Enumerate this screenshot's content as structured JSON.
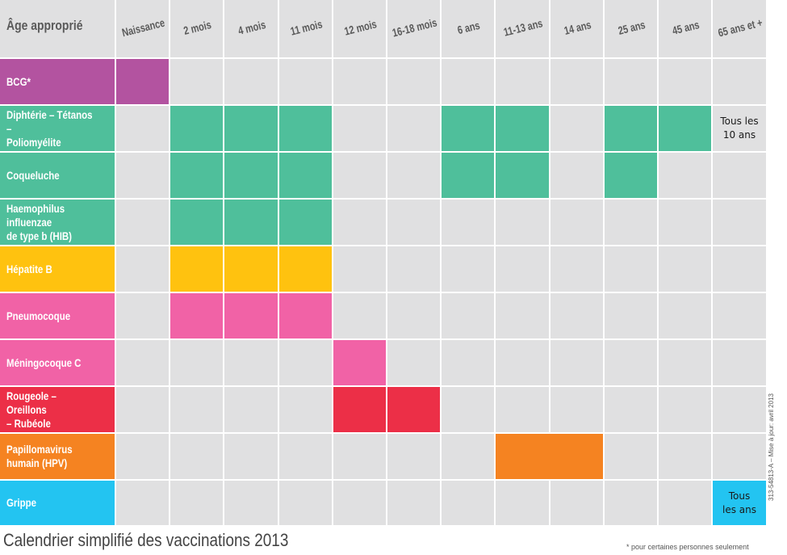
{
  "chart_data": {
    "type": "table",
    "title": "Calendrier simplifié des vaccinations 2013",
    "corner_label": "Âge approprié",
    "columns": [
      "Naissance",
      "2 mois",
      "4 mois",
      "11 mois",
      "12 mois",
      "16-18 mois",
      "6 ans",
      "11-13 ans",
      "14 ans",
      "25 ans",
      "45 ans",
      "65 ans et +"
    ],
    "rows": [
      {
        "name": "BCG*",
        "color": "#b353a0",
        "doses": [
          1,
          0,
          0,
          0,
          0,
          0,
          0,
          0,
          0,
          0,
          0,
          0
        ]
      },
      {
        "name": "Diphtérie – Tétanos –\nPoliomyélite",
        "color": "#4fbf9b",
        "doses": [
          0,
          1,
          1,
          1,
          0,
          0,
          1,
          1,
          0,
          1,
          1,
          0
        ],
        "note_col": 11,
        "note": "Tous les\n10 ans"
      },
      {
        "name": "Coqueluche",
        "color": "#4fbf9b",
        "doses": [
          0,
          1,
          1,
          1,
          0,
          0,
          1,
          1,
          0,
          1,
          0,
          0
        ]
      },
      {
        "name": "Haemophilus influenzae\nde type b (HIB)",
        "color": "#4fbf9b",
        "doses": [
          0,
          1,
          1,
          1,
          0,
          0,
          0,
          0,
          0,
          0,
          0,
          0
        ]
      },
      {
        "name": "Hépatite B",
        "color": "#ffc20f",
        "doses": [
          0,
          1,
          1,
          1,
          0,
          0,
          0,
          0,
          0,
          0,
          0,
          0
        ]
      },
      {
        "name": "Pneumocoque",
        "color": "#f162a6",
        "doses": [
          0,
          1,
          1,
          1,
          0,
          0,
          0,
          0,
          0,
          0,
          0,
          0
        ]
      },
      {
        "name": "Méningocoque C",
        "color": "#f162a6",
        "doses": [
          0,
          0,
          0,
          0,
          1,
          0,
          0,
          0,
          0,
          0,
          0,
          0
        ]
      },
      {
        "name": "Rougeole – Oreillons\n– Rubéole",
        "color": "#ec2f47",
        "doses": [
          0,
          0,
          0,
          0,
          1,
          1,
          0,
          0,
          0,
          0,
          0,
          0
        ]
      },
      {
        "name": "Papillomavirus\nhumain (HPV)",
        "color": "#f58321",
        "doses": [
          0,
          0,
          0,
          0,
          0,
          0,
          0,
          1,
          1,
          0,
          0,
          0
        ],
        "merged": true
      },
      {
        "name": "Grippe",
        "color": "#23c4f1",
        "doses": [
          0,
          0,
          0,
          0,
          0,
          0,
          0,
          0,
          0,
          0,
          0,
          1
        ],
        "note_col": 11,
        "note": "Tous\nles ans"
      }
    ],
    "empty_cell_color": "#e0e0e1",
    "grid": true,
    "legend": "none"
  },
  "footnote": "* pour certaines personnes seulement",
  "side_code": "313-54813-A – Mise à jour: avril 2013"
}
